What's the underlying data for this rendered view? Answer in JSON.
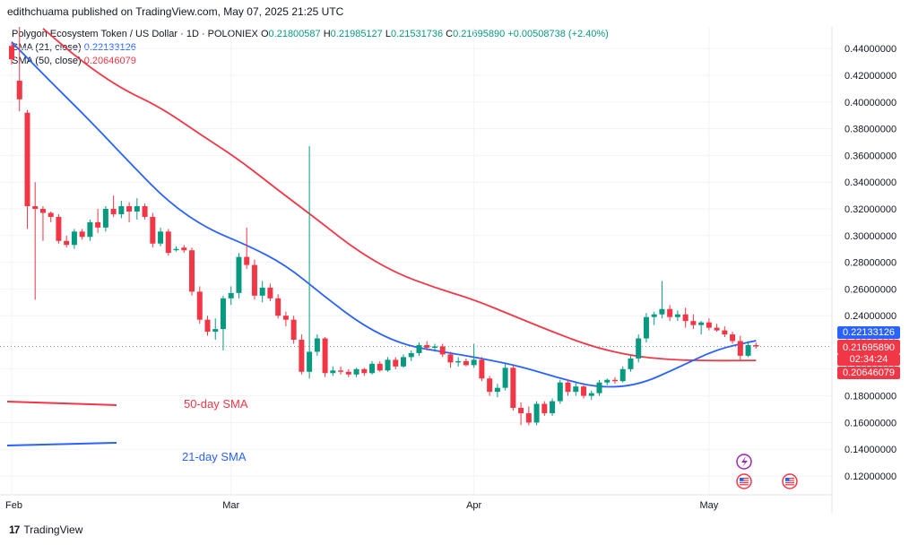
{
  "header": {
    "text": "edithchuama published on TradingView.com, May 07, 2025 21:25 UTC"
  },
  "legend": {
    "symbol": "Polygon Ecosystem Token / US Dollar · 1D · POLONIEX",
    "o_label": "O",
    "o_value": "0.21800587",
    "h_label": "H",
    "h_value": "0.21985127",
    "l_label": "L",
    "l_value": "0.21531736",
    "c_label": "C",
    "c_value": "0.21695890",
    "change": "+0.00508738 (+2.40%)",
    "sma21_label": "SMA (21, close)",
    "sma21_value": "0.22133126",
    "sma50_label": "SMA (50, close)",
    "sma50_value": "0.20646079"
  },
  "footer": {
    "brand": "TradingView",
    "logo_mark": "17"
  },
  "badges": {
    "sma21": "0.22133126",
    "price": "0.21695890",
    "countdown": "02:34:24",
    "sma50": "0.20646079"
  },
  "colors": {
    "up": "#089981",
    "down": "#f23645",
    "sma21": "#2962ff",
    "sma50": "#f23645",
    "grid": "#f0f3fa",
    "price_line": "#9598a1"
  },
  "icons": [
    "lightning-icon",
    "us-flag-icon",
    "us-flag-icon"
  ],
  "chart_data": {
    "type": "candlestick",
    "x_labels": [
      "Feb",
      "Mar",
      "Apr",
      "May"
    ],
    "y_ticks": [
      "0.12000000",
      "0.14000000",
      "0.16000000",
      "0.18000000",
      "0.20000000",
      "0.22000000",
      "0.24000000",
      "0.26000000",
      "0.28000000",
      "0.30000000",
      "0.32000000",
      "0.34000000",
      "0.36000000",
      "0.38000000",
      "0.40000000",
      "0.42000000",
      "0.44000000"
    ],
    "ylim": [
      0.11,
      0.455
    ],
    "annotations": {
      "sma50": "50-day SMA",
      "sma21": "21-day SMA"
    },
    "candles": [
      {
        "date": "2025-02-01",
        "o": 0.442,
        "h": 0.445,
        "l": 0.428,
        "c": 0.432
      },
      {
        "date": "2025-02-02",
        "o": 0.416,
        "h": 0.458,
        "l": 0.393,
        "c": 0.402
      },
      {
        "date": "2025-02-03",
        "o": 0.392,
        "h": 0.394,
        "l": 0.305,
        "c": 0.322
      },
      {
        "date": "2025-02-04",
        "o": 0.322,
        "h": 0.34,
        "l": 0.252,
        "c": 0.32
      },
      {
        "date": "2025-02-05",
        "o": 0.32,
        "h": 0.322,
        "l": 0.296,
        "c": 0.317
      },
      {
        "date": "2025-02-06",
        "o": 0.317,
        "h": 0.318,
        "l": 0.31,
        "c": 0.314
      },
      {
        "date": "2025-02-07",
        "o": 0.314,
        "h": 0.316,
        "l": 0.294,
        "c": 0.296
      },
      {
        "date": "2025-02-08",
        "o": 0.296,
        "h": 0.3,
        "l": 0.291,
        "c": 0.293
      },
      {
        "date": "2025-02-09",
        "o": 0.293,
        "h": 0.305,
        "l": 0.29,
        "c": 0.303
      },
      {
        "date": "2025-02-10",
        "o": 0.303,
        "h": 0.305,
        "l": 0.297,
        "c": 0.299
      },
      {
        "date": "2025-02-11",
        "o": 0.299,
        "h": 0.312,
        "l": 0.296,
        "c": 0.31
      },
      {
        "date": "2025-02-12",
        "o": 0.31,
        "h": 0.32,
        "l": 0.302,
        "c": 0.306
      },
      {
        "date": "2025-02-13",
        "o": 0.306,
        "h": 0.322,
        "l": 0.303,
        "c": 0.32
      },
      {
        "date": "2025-02-14",
        "o": 0.32,
        "h": 0.33,
        "l": 0.314,
        "c": 0.316
      },
      {
        "date": "2025-02-15",
        "o": 0.316,
        "h": 0.326,
        "l": 0.313,
        "c": 0.322
      },
      {
        "date": "2025-02-16",
        "o": 0.322,
        "h": 0.325,
        "l": 0.31,
        "c": 0.318
      },
      {
        "date": "2025-02-17",
        "o": 0.318,
        "h": 0.328,
        "l": 0.312,
        "c": 0.322
      },
      {
        "date": "2025-02-18",
        "o": 0.322,
        "h": 0.324,
        "l": 0.312,
        "c": 0.314
      },
      {
        "date": "2025-02-19",
        "o": 0.314,
        "h": 0.317,
        "l": 0.291,
        "c": 0.294
      },
      {
        "date": "2025-02-20",
        "o": 0.294,
        "h": 0.306,
        "l": 0.292,
        "c": 0.303
      },
      {
        "date": "2025-02-21",
        "o": 0.303,
        "h": 0.305,
        "l": 0.285,
        "c": 0.287
      },
      {
        "date": "2025-02-22",
        "o": 0.289,
        "h": 0.292,
        "l": 0.288,
        "c": 0.29
      },
      {
        "date": "2025-02-23",
        "o": 0.291,
        "h": 0.293,
        "l": 0.287,
        "c": 0.289
      },
      {
        "date": "2025-02-24",
        "o": 0.289,
        "h": 0.291,
        "l": 0.255,
        "c": 0.258
      },
      {
        "date": "2025-02-25",
        "o": 0.258,
        "h": 0.262,
        "l": 0.234,
        "c": 0.237
      },
      {
        "date": "2025-02-26",
        "o": 0.237,
        "h": 0.24,
        "l": 0.225,
        "c": 0.228
      },
      {
        "date": "2025-02-27",
        "o": 0.228,
        "h": 0.238,
        "l": 0.222,
        "c": 0.23
      },
      {
        "date": "2025-02-28",
        "o": 0.23,
        "h": 0.255,
        "l": 0.214,
        "c": 0.253
      },
      {
        "date": "2025-03-01",
        "o": 0.253,
        "h": 0.262,
        "l": 0.248,
        "c": 0.257
      },
      {
        "date": "2025-03-02",
        "o": 0.257,
        "h": 0.287,
        "l": 0.253,
        "c": 0.284
      },
      {
        "date": "2025-03-03",
        "o": 0.284,
        "h": 0.306,
        "l": 0.275,
        "c": 0.278
      },
      {
        "date": "2025-03-04",
        "o": 0.278,
        "h": 0.282,
        "l": 0.252,
        "c": 0.255
      },
      {
        "date": "2025-03-05",
        "o": 0.255,
        "h": 0.266,
        "l": 0.25,
        "c": 0.261
      },
      {
        "date": "2025-03-06",
        "o": 0.261,
        "h": 0.264,
        "l": 0.251,
        "c": 0.253
      },
      {
        "date": "2025-03-07",
        "o": 0.253,
        "h": 0.256,
        "l": 0.238,
        "c": 0.24
      },
      {
        "date": "2025-03-08",
        "o": 0.24,
        "h": 0.243,
        "l": 0.232,
        "c": 0.237
      },
      {
        "date": "2025-03-09",
        "o": 0.237,
        "h": 0.24,
        "l": 0.219,
        "c": 0.222
      },
      {
        "date": "2025-03-10",
        "o": 0.222,
        "h": 0.226,
        "l": 0.196,
        "c": 0.198
      },
      {
        "date": "2025-03-11",
        "o": 0.198,
        "h": 0.367,
        "l": 0.193,
        "c": 0.213
      },
      {
        "date": "2025-03-12",
        "o": 0.213,
        "h": 0.226,
        "l": 0.21,
        "c": 0.223
      },
      {
        "date": "2025-03-13",
        "o": 0.223,
        "h": 0.224,
        "l": 0.194,
        "c": 0.197
      },
      {
        "date": "2025-03-14",
        "o": 0.197,
        "h": 0.202,
        "l": 0.195,
        "c": 0.199
      },
      {
        "date": "2025-03-15",
        "o": 0.199,
        "h": 0.202,
        "l": 0.196,
        "c": 0.198
      },
      {
        "date": "2025-03-16",
        "o": 0.198,
        "h": 0.2,
        "l": 0.194,
        "c": 0.196
      },
      {
        "date": "2025-03-17",
        "o": 0.196,
        "h": 0.201,
        "l": 0.194,
        "c": 0.2
      },
      {
        "date": "2025-03-18",
        "o": 0.2,
        "h": 0.201,
        "l": 0.195,
        "c": 0.197
      },
      {
        "date": "2025-03-19",
        "o": 0.197,
        "h": 0.206,
        "l": 0.196,
        "c": 0.204
      },
      {
        "date": "2025-03-20",
        "o": 0.204,
        "h": 0.206,
        "l": 0.198,
        "c": 0.199
      },
      {
        "date": "2025-03-21",
        "o": 0.199,
        "h": 0.209,
        "l": 0.198,
        "c": 0.207
      },
      {
        "date": "2025-03-22",
        "o": 0.207,
        "h": 0.209,
        "l": 0.2,
        "c": 0.202
      },
      {
        "date": "2025-03-23",
        "o": 0.202,
        "h": 0.211,
        "l": 0.201,
        "c": 0.209
      },
      {
        "date": "2025-03-24",
        "o": 0.209,
        "h": 0.214,
        "l": 0.206,
        "c": 0.212
      },
      {
        "date": "2025-03-25",
        "o": 0.212,
        "h": 0.22,
        "l": 0.21,
        "c": 0.218
      },
      {
        "date": "2025-03-26",
        "o": 0.218,
        "h": 0.221,
        "l": 0.214,
        "c": 0.216
      },
      {
        "date": "2025-03-27",
        "o": 0.216,
        "h": 0.219,
        "l": 0.213,
        "c": 0.217
      },
      {
        "date": "2025-03-28",
        "o": 0.217,
        "h": 0.219,
        "l": 0.209,
        "c": 0.211
      },
      {
        "date": "2025-03-29",
        "o": 0.211,
        "h": 0.213,
        "l": 0.201,
        "c": 0.205
      },
      {
        "date": "2025-03-30",
        "o": 0.205,
        "h": 0.209,
        "l": 0.202,
        "c": 0.206
      },
      {
        "date": "2025-03-31",
        "o": 0.206,
        "h": 0.208,
        "l": 0.202,
        "c": 0.203
      },
      {
        "date": "2025-04-01",
        "o": 0.203,
        "h": 0.219,
        "l": 0.201,
        "c": 0.207
      },
      {
        "date": "2025-04-02",
        "o": 0.207,
        "h": 0.209,
        "l": 0.191,
        "c": 0.193
      },
      {
        "date": "2025-04-03",
        "o": 0.193,
        "h": 0.195,
        "l": 0.18,
        "c": 0.183
      },
      {
        "date": "2025-04-04",
        "o": 0.183,
        "h": 0.189,
        "l": 0.179,
        "c": 0.186
      },
      {
        "date": "2025-04-05",
        "o": 0.186,
        "h": 0.204,
        "l": 0.184,
        "c": 0.201
      },
      {
        "date": "2025-04-06",
        "o": 0.201,
        "h": 0.203,
        "l": 0.169,
        "c": 0.171
      },
      {
        "date": "2025-04-07",
        "o": 0.171,
        "h": 0.175,
        "l": 0.158,
        "c": 0.167
      },
      {
        "date": "2025-04-08",
        "o": 0.167,
        "h": 0.172,
        "l": 0.158,
        "c": 0.16
      },
      {
        "date": "2025-04-09",
        "o": 0.16,
        "h": 0.176,
        "l": 0.158,
        "c": 0.174
      },
      {
        "date": "2025-04-10",
        "o": 0.174,
        "h": 0.176,
        "l": 0.165,
        "c": 0.167
      },
      {
        "date": "2025-04-11",
        "o": 0.167,
        "h": 0.178,
        "l": 0.165,
        "c": 0.176
      },
      {
        "date": "2025-04-12",
        "o": 0.176,
        "h": 0.192,
        "l": 0.174,
        "c": 0.19
      },
      {
        "date": "2025-04-13",
        "o": 0.19,
        "h": 0.192,
        "l": 0.18,
        "c": 0.183
      },
      {
        "date": "2025-04-14",
        "o": 0.183,
        "h": 0.19,
        "l": 0.18,
        "c": 0.187
      },
      {
        "date": "2025-04-15",
        "o": 0.187,
        "h": 0.188,
        "l": 0.178,
        "c": 0.18
      },
      {
        "date": "2025-04-16",
        "o": 0.18,
        "h": 0.184,
        "l": 0.177,
        "c": 0.182
      },
      {
        "date": "2025-04-17",
        "o": 0.182,
        "h": 0.192,
        "l": 0.18,
        "c": 0.19
      },
      {
        "date": "2025-04-18",
        "o": 0.19,
        "h": 0.193,
        "l": 0.188,
        "c": 0.192
      },
      {
        "date": "2025-04-19",
        "o": 0.192,
        "h": 0.194,
        "l": 0.189,
        "c": 0.191
      },
      {
        "date": "2025-04-20",
        "o": 0.191,
        "h": 0.202,
        "l": 0.19,
        "c": 0.2
      },
      {
        "date": "2025-04-21",
        "o": 0.2,
        "h": 0.21,
        "l": 0.198,
        "c": 0.208
      },
      {
        "date": "2025-04-22",
        "o": 0.208,
        "h": 0.226,
        "l": 0.205,
        "c": 0.223
      },
      {
        "date": "2025-04-23",
        "o": 0.223,
        "h": 0.242,
        "l": 0.22,
        "c": 0.239
      },
      {
        "date": "2025-04-24",
        "o": 0.239,
        "h": 0.243,
        "l": 0.233,
        "c": 0.241
      },
      {
        "date": "2025-04-25",
        "o": 0.241,
        "h": 0.266,
        "l": 0.238,
        "c": 0.245
      },
      {
        "date": "2025-04-26",
        "o": 0.245,
        "h": 0.248,
        "l": 0.236,
        "c": 0.239
      },
      {
        "date": "2025-04-27",
        "o": 0.239,
        "h": 0.244,
        "l": 0.236,
        "c": 0.241
      },
      {
        "date": "2025-04-28",
        "o": 0.241,
        "h": 0.246,
        "l": 0.231,
        "c": 0.236
      },
      {
        "date": "2025-04-29",
        "o": 0.236,
        "h": 0.241,
        "l": 0.23,
        "c": 0.233
      },
      {
        "date": "2025-04-30",
        "o": 0.233,
        "h": 0.236,
        "l": 0.226,
        "c": 0.235
      },
      {
        "date": "2025-05-01",
        "o": 0.235,
        "h": 0.238,
        "l": 0.229,
        "c": 0.231
      },
      {
        "date": "2025-05-02",
        "o": 0.231,
        "h": 0.234,
        "l": 0.228,
        "c": 0.229
      },
      {
        "date": "2025-05-03",
        "o": 0.229,
        "h": 0.232,
        "l": 0.224,
        "c": 0.226
      },
      {
        "date": "2025-05-04",
        "o": 0.226,
        "h": 0.228,
        "l": 0.219,
        "c": 0.221
      },
      {
        "date": "2025-05-05",
        "o": 0.221,
        "h": 0.225,
        "l": 0.207,
        "c": 0.21
      },
      {
        "date": "2025-05-06",
        "o": 0.21,
        "h": 0.221,
        "l": 0.209,
        "c": 0.218
      },
      {
        "date": "2025-05-07",
        "o": 0.218,
        "h": 0.21985,
        "l": 0.21532,
        "c": 0.21696
      }
    ],
    "sma21": [
      [
        "2025-02-01",
        0.445
      ],
      [
        "2025-02-06",
        0.415
      ],
      [
        "2025-02-11",
        0.386
      ],
      [
        "2025-02-16",
        0.355
      ],
      [
        "2025-02-21",
        0.325
      ],
      [
        "2025-02-26",
        0.305
      ],
      [
        "2025-03-03",
        0.293
      ],
      [
        "2025-03-08",
        0.278
      ],
      [
        "2025-03-13",
        0.254
      ],
      [
        "2025-03-18",
        0.232
      ],
      [
        "2025-03-23",
        0.218
      ],
      [
        "2025-03-28",
        0.213
      ],
      [
        "2025-04-02",
        0.208
      ],
      [
        "2025-04-07",
        0.202
      ],
      [
        "2025-04-12",
        0.193
      ],
      [
        "2025-04-17",
        0.186
      ],
      [
        "2025-04-22",
        0.188
      ],
      [
        "2025-04-27",
        0.201
      ],
      [
        "2025-05-02",
        0.215
      ],
      [
        "2025-05-07",
        0.2213
      ]
    ],
    "sma50": [
      [
        "2025-02-05",
        0.455
      ],
      [
        "2025-02-10",
        0.43
      ],
      [
        "2025-02-15",
        0.41
      ],
      [
        "2025-02-20",
        0.396
      ],
      [
        "2025-02-25",
        0.376
      ],
      [
        "2025-03-02",
        0.357
      ],
      [
        "2025-03-07",
        0.334
      ],
      [
        "2025-03-12",
        0.312
      ],
      [
        "2025-03-17",
        0.289
      ],
      [
        "2025-03-22",
        0.272
      ],
      [
        "2025-03-27",
        0.261
      ],
      [
        "2025-04-01",
        0.252
      ],
      [
        "2025-04-06",
        0.24
      ],
      [
        "2025-04-11",
        0.228
      ],
      [
        "2025-04-16",
        0.217
      ],
      [
        "2025-04-21",
        0.21
      ],
      [
        "2025-04-26",
        0.207
      ],
      [
        "2025-05-01",
        0.2063
      ],
      [
        "2025-05-07",
        0.2065
      ]
    ]
  }
}
